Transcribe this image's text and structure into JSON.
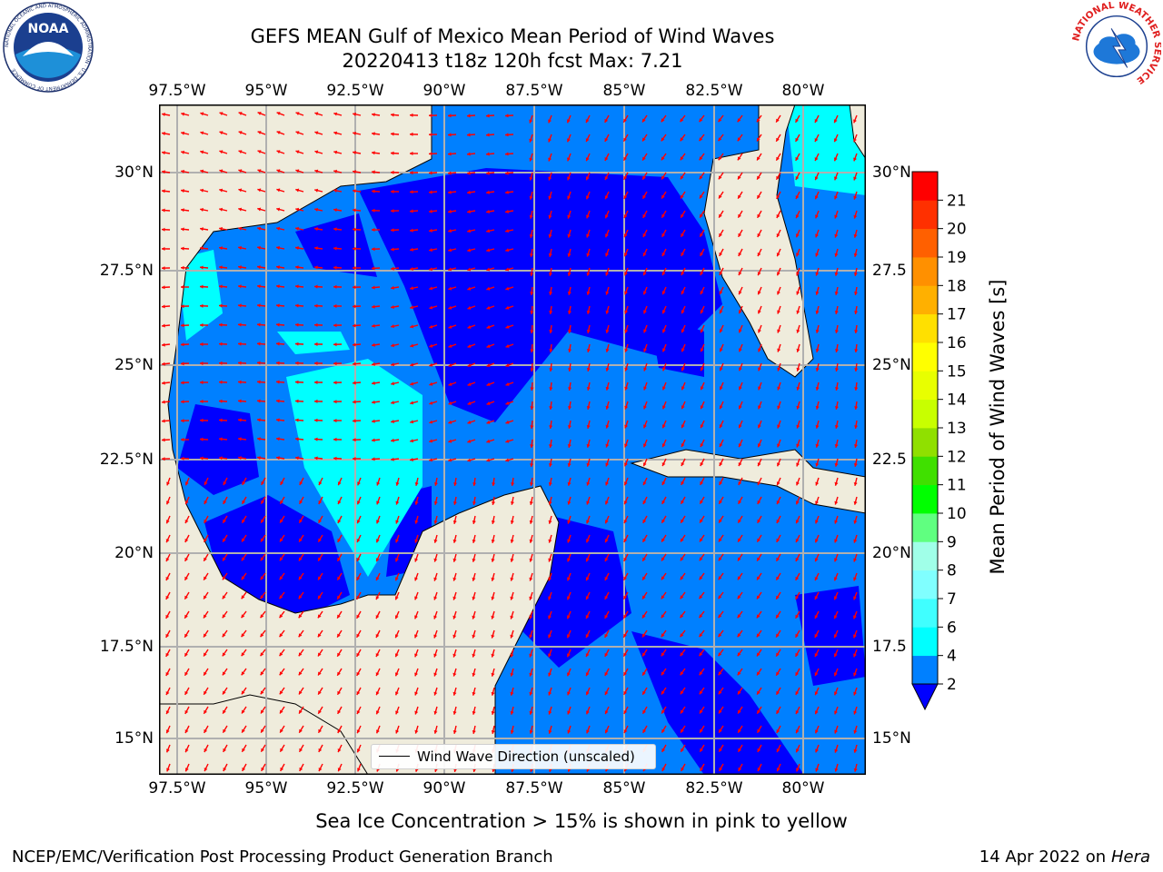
{
  "title_line1": "GEFS MEAN Gulf of Mexico Mean Period of Wind Waves",
  "title_line2": "20220413 t18z 120h fcst   Max: 7.21",
  "x_ticks": [
    "97.5°W",
    "95°W",
    "92.5°W",
    "90°W",
    "87.5°W",
    "85°W",
    "82.5°W",
    "80°W"
  ],
  "y_ticks_left": [
    "30°N",
    "27.5°N",
    "25°N",
    "22.5°N",
    "20°N",
    "17.5°N",
    "15°N"
  ],
  "y_ticks_right": [
    "30°N",
    "27.5",
    "25°N",
    "22.5",
    "20°N",
    "17.5",
    "15°N"
  ],
  "legend_label": "Wind Wave Direction (unscaled)",
  "colorbar": {
    "label": "Mean Period of Wind Waves [s]",
    "ticks": [
      "2",
      "4",
      "6",
      "7",
      "8",
      "9",
      "10",
      "11",
      "12",
      "13",
      "14",
      "15",
      "16",
      "17",
      "18",
      "19",
      "20",
      "21"
    ],
    "colors": [
      "#0000ff",
      "#0080ff",
      "#00ffff",
      "#40ffff",
      "#80ffff",
      "#a0ffe8",
      "#60ff80",
      "#00ff00",
      "#40e000",
      "#90e000",
      "#c8ff00",
      "#e8ff00",
      "#ffff00",
      "#ffe000",
      "#ffb000",
      "#ff9000",
      "#ff6000",
      "#ff3000",
      "#ff0000"
    ]
  },
  "map_colors": {
    "land": "#efecdc",
    "ocean_high": "#0000ff",
    "ocean_mid": "#0080ff",
    "ocean_low": "#00ffff",
    "arrow": "#ff0000",
    "grid": "#b0b0b0"
  },
  "sea_ice_note": "Sea Ice Concentration > 15% is shown in pink to yellow",
  "footer_left": "NCEP/EMC/Verification Post Processing Product Generation Branch",
  "footer_date": "14 Apr 2022 on",
  "footer_host": "Hera",
  "logos": {
    "noaa_text": "NOAA",
    "noaa_ring": "NATIONAL OCEANIC AND ATMOSPHERIC ADMINISTRATION · U.S. DEPARTMENT OF COMMERCE",
    "nws_ring": "NATIONAL WEATHER SERVICE"
  }
}
